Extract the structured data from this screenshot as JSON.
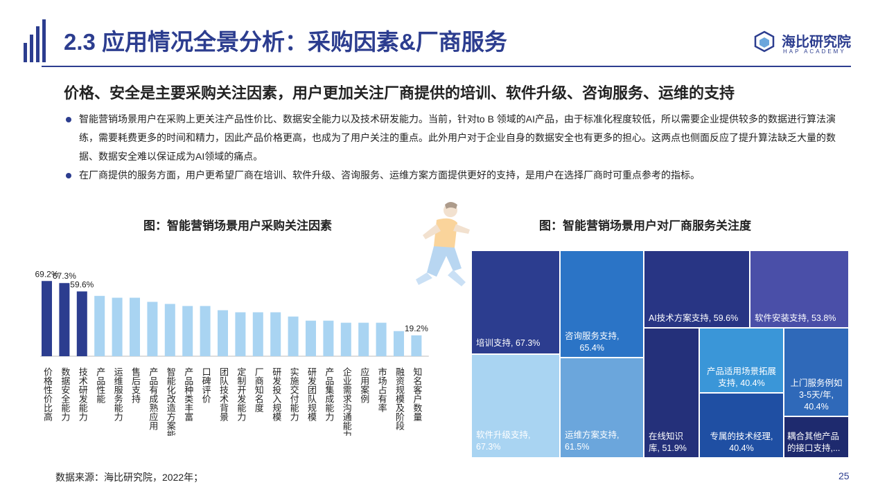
{
  "header": {
    "title": "2.3 应用情况全景分析：采购因素&厂商服务",
    "logo_text": "海比研究院",
    "logo_sub": "HAP ACADEMY"
  },
  "subtitle": "价格、安全是主要采购关注因素，用户更加关注厂商提供的培训、软件升级、咨询服务、运维的支持",
  "bullets": [
    "智能营销场景用户在采购上更关注产品性价比、数据安全能力以及技术研发能力。当前，针对to B 领域的AI产品，由于标准化程度较低，所以需要企业提供较多的数据进行算法演练，需要耗费更多的时间和精力，因此产品价格更高，也成为了用户关注的重点。此外用户对于企业自身的数据安全也有更多的担心。这两点也侧面反应了提升算法缺乏大量的数据、数据安全难以保证成为AI领域的痛点。",
    "在厂商提供的服务方面，用户更希望厂商在培训、软件升级、咨询服务、运维方案方面提供更好的支持，是用户在选择厂商时可重点参考的指标。"
  ],
  "chart_left_title": "图：智能营销场景用户采购关注因素",
  "chart_right_title": "图：智能营销场景用户对厂商服务关注度",
  "chart_data": [
    {
      "type": "bar",
      "categories": [
        "价格性价比高",
        "数据安全能力",
        "技术研发能力",
        "产品性能",
        "运维服务能力",
        "售后支持",
        "产品有成熟应用",
        "智能化改造方案能力",
        "产品种类丰富",
        "口碑评价",
        "团队技术背景",
        "定制开发能力",
        "厂商知名度",
        "研发投入规模",
        "实施交付能力",
        "研发团队规模",
        "产品集成能力",
        "企业需求沟通能力",
        "应用案例",
        "市场占有率",
        "融资规模及阶段",
        "知名客户数量"
      ],
      "values": [
        69.2,
        67.3,
        59.6,
        55.5,
        53.8,
        53.8,
        50.0,
        48.1,
        46.2,
        46.2,
        42.3,
        40.4,
        40.4,
        40.4,
        36.5,
        32.7,
        32.7,
        30.8,
        30.8,
        30.8,
        23.1,
        19.2
      ],
      "data_labels": {
        "0": "69.2%",
        "1": "67.3%",
        "2": "59.6%",
        "21": "19.2%"
      },
      "highlight_count": 3,
      "colors": {
        "highlight": "#2c3d8f",
        "normal": "#a9d4f2"
      }
    },
    {
      "type": "treemap",
      "items": [
        {
          "label": "培训支持, 67.3%",
          "value": 67.3,
          "color": "#2c3d8f"
        },
        {
          "label": "软件升级支持, 67.3%",
          "value": 67.3,
          "color": "#a9d4f2"
        },
        {
          "label": "咨询服务支持, 65.4%",
          "value": 65.4,
          "color": "#2b74c6"
        },
        {
          "label": "运维方案支持, 61.5%",
          "value": 61.5,
          "color": "#6ba6dc"
        },
        {
          "label": "AI技术方案支持, 59.6%",
          "value": 59.6,
          "color": "#283584"
        },
        {
          "label": "软件安装支持, 53.8%",
          "value": 53.8,
          "color": "#4a4fa8"
        },
        {
          "label": "在线知识库, 51.9%",
          "value": 51.9,
          "color": "#24307a"
        },
        {
          "label": "产品适用场景拓展支持, 40.4%",
          "value": 40.4,
          "color": "#3a96d8"
        },
        {
          "label": "专属的技术经理, 40.4%",
          "value": 40.4,
          "color": "#1f4fa3"
        },
        {
          "label": "上门服务例如3-5天/年, 40.4%",
          "value": 40.4,
          "color": "#2f69b9"
        },
        {
          "label": "耦合其他产品的接口支持,...",
          "value": 25.0,
          "color": "#1e2a6e"
        }
      ]
    }
  ],
  "treemap_text": {
    "c0": [
      "培训支持, 67.3%"
    ],
    "c1": [
      "软件升级支持,",
      "67.3%"
    ],
    "c2": [
      "咨询服务支持,",
      "65.4%"
    ],
    "c3": [
      "运维方案支持,",
      "61.5%"
    ],
    "c4": [
      "AI技术方案支持, 59.6%"
    ],
    "c5": [
      "软件安装支持, 53.8%"
    ],
    "c6": [
      "在线知识",
      "库, 51.9%"
    ],
    "c7": [
      "产品适用场景拓展",
      "支持, 40.4%"
    ],
    "c8": [
      "专属的技术经理,",
      "40.4%"
    ],
    "c9": [
      "上门服务例如",
      "3-5天/年,",
      "40.4%"
    ],
    "c10": [
      "耦合其他产品",
      "的接口支持,..."
    ]
  },
  "source": "数据来源：海比研究院，2022年；",
  "page_number": "25"
}
